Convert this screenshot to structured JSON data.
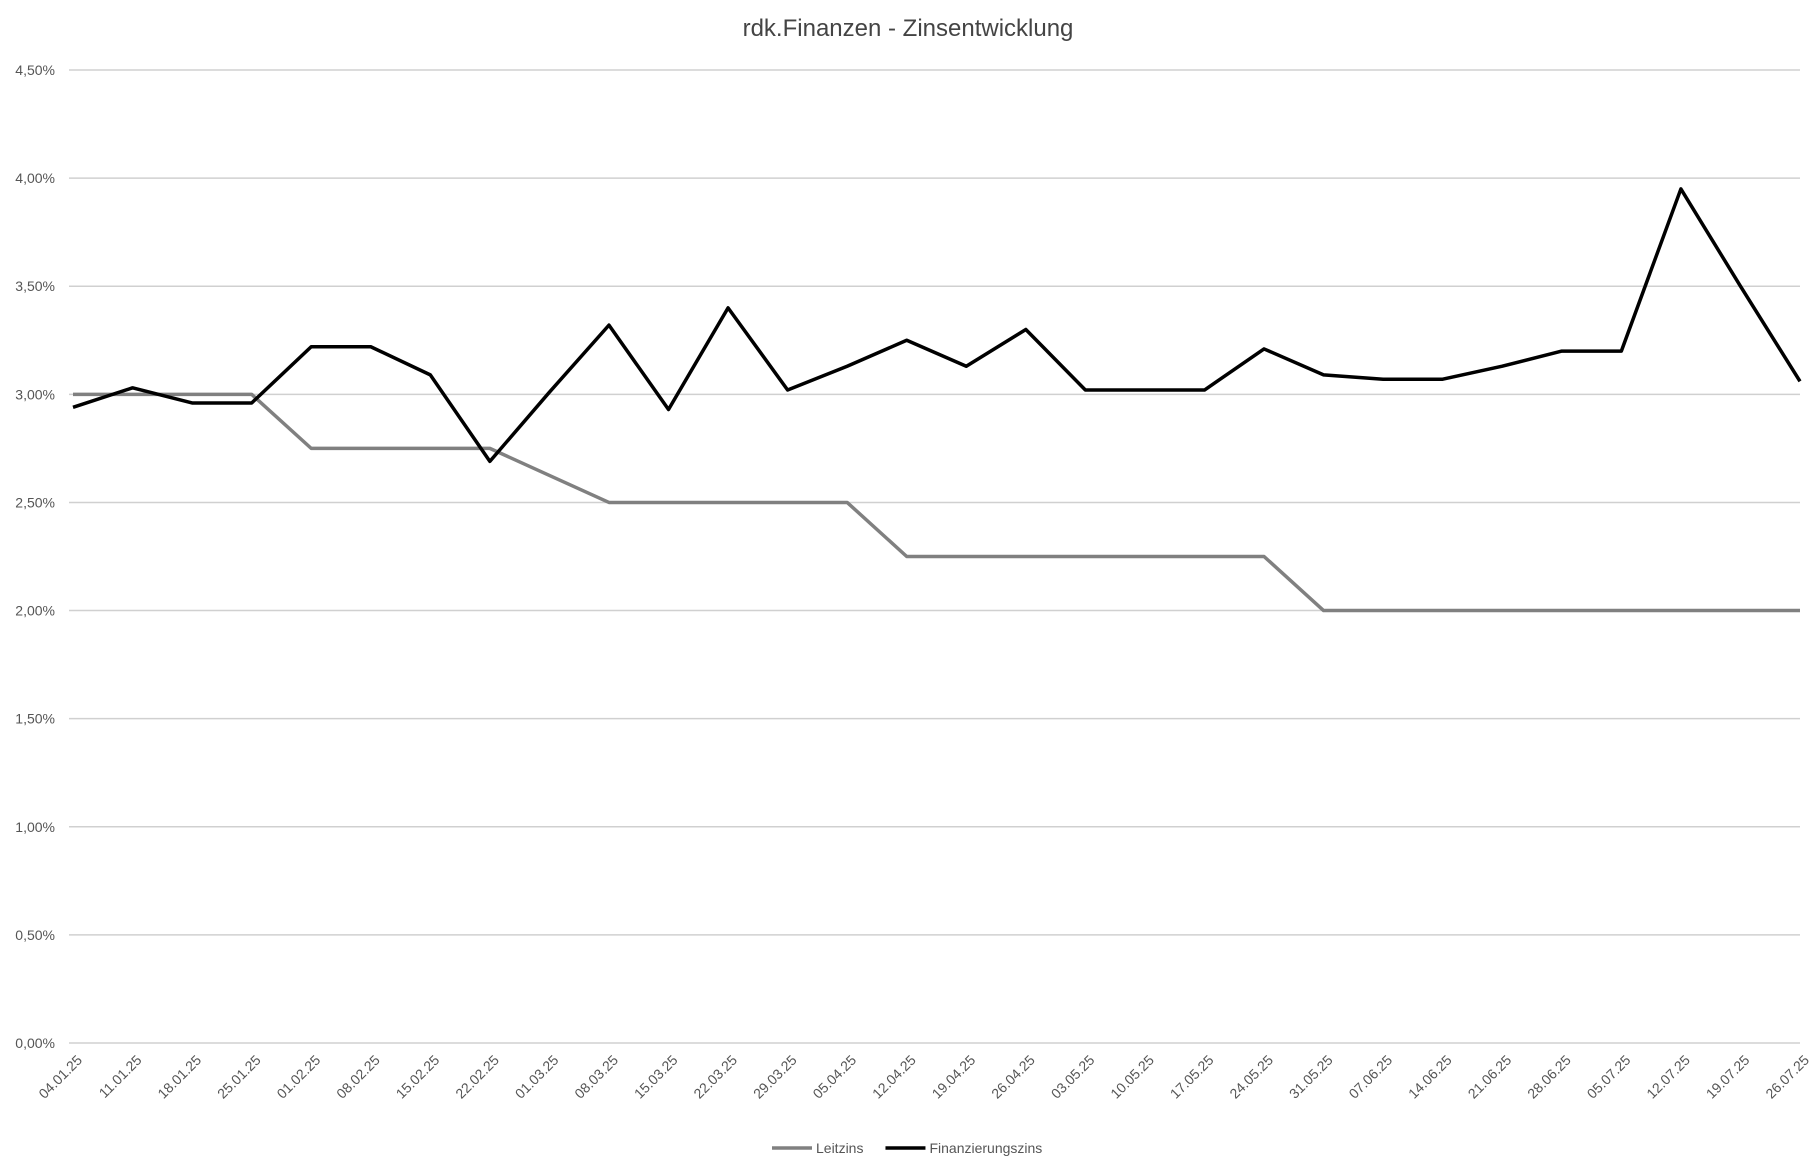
{
  "chart_data": {
    "type": "line",
    "title": "rdk.Finanzen - Zinsentwicklung",
    "categories": [
      "04.01.25",
      "11.01.25",
      "18.01.25",
      "25.01.25",
      "01.02.25",
      "08.02.25",
      "15.02.25",
      "22.02.25",
      "01.03.25",
      "08.03.25",
      "15.03.25",
      "22.03.25",
      "29.03.25",
      "05.04.25",
      "12.04.25",
      "19.04.25",
      "26.04.25",
      "03.05.25",
      "10.05.25",
      "17.05.25",
      "24.05.25",
      "31.05.25",
      "07.06.25",
      "14.06.25",
      "21.06.25",
      "28.06.25",
      "05.07.25",
      "12.07.25",
      "19.07.25",
      "26.07.25"
    ],
    "series": [
      {
        "name": "Leitzins",
        "color": "#808080",
        "values": [
          3.0,
          3.0,
          3.0,
          3.0,
          2.75,
          2.75,
          2.75,
          2.75,
          2.625,
          2.5,
          2.5,
          2.5,
          2.5,
          2.5,
          2.25,
          2.25,
          2.25,
          2.25,
          2.25,
          2.25,
          2.25,
          2.0,
          2.0,
          2.0,
          2.0,
          2.0,
          2.0,
          2.0,
          2.0,
          2.0
        ]
      },
      {
        "name": "Finanzierungszins",
        "color": "#000000",
        "values": [
          2.94,
          3.03,
          2.96,
          2.96,
          3.22,
          3.22,
          3.09,
          2.69,
          3.01,
          3.32,
          2.93,
          3.4,
          3.02,
          3.13,
          3.25,
          3.13,
          3.3,
          3.02,
          3.02,
          3.02,
          3.21,
          3.09,
          3.07,
          3.07,
          3.13,
          3.2,
          3.2,
          3.95,
          3.5,
          3.06
        ]
      }
    ],
    "ylim": [
      0,
      4.5
    ],
    "yticks": [
      {
        "value": 0,
        "label": "0,00%"
      },
      {
        "value": 0.5,
        "label": "0,50%"
      },
      {
        "value": 1,
        "label": "1,00%"
      },
      {
        "value": 1.5,
        "label": "1,50%"
      },
      {
        "value": 2,
        "label": "2,00%"
      },
      {
        "value": 2.5,
        "label": "2,50%"
      },
      {
        "value": 3,
        "label": "3,00%"
      },
      {
        "value": 3.5,
        "label": "3,50%"
      },
      {
        "value": 4,
        "label": "4,00%"
      },
      {
        "value": 4.5,
        "label": "4,50%"
      }
    ],
    "grid": true,
    "legend": "bottom"
  }
}
